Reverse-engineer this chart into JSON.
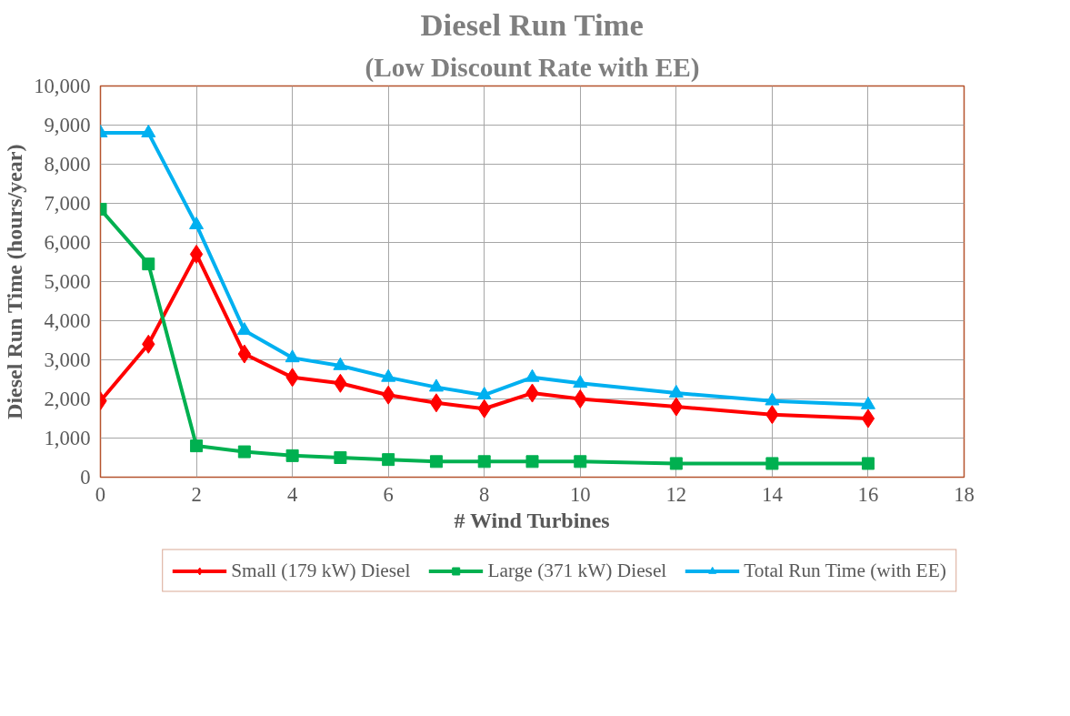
{
  "chart_data": {
    "type": "line",
    "title": "Diesel Run Time",
    "subtitle": "(Low Discount Rate with EE)",
    "xlabel": "# Wind Turbines",
    "ylabel": "Diesel Run Time (hours/year)",
    "x": [
      0,
      1,
      2,
      3,
      4,
      5,
      6,
      7,
      8,
      9,
      10,
      12,
      14,
      16
    ],
    "series": [
      {
        "name": "Small (179 kW) Diesel",
        "color": "#ff0000",
        "marker": "diamond",
        "values": [
          1950,
          3400,
          5700,
          3150,
          2550,
          2400,
          2100,
          1900,
          1750,
          2150,
          2000,
          1800,
          1600,
          1500
        ]
      },
      {
        "name": "Large (371 kW) Diesel",
        "color": "#00b050",
        "marker": "square",
        "values": [
          6850,
          5450,
          800,
          650,
          550,
          500,
          450,
          400,
          400,
          400,
          400,
          350,
          350,
          350
        ]
      },
      {
        "name": "Total Run Time (with EE)",
        "color": "#00b0f0",
        "marker": "triangle",
        "values": [
          8800,
          8800,
          6450,
          3750,
          3050,
          2850,
          2550,
          2300,
          2100,
          2550,
          2400,
          2150,
          1950,
          1850
        ]
      }
    ],
    "xlim": [
      0,
      18
    ],
    "xticks": [
      0,
      2,
      4,
      6,
      8,
      10,
      12,
      14,
      16,
      18
    ],
    "ylim": [
      0,
      10000
    ],
    "yticks": [
      {
        "value": 0,
        "label": "0"
      },
      {
        "value": 1000,
        "label": "1,000"
      },
      {
        "value": 2000,
        "label": "2,000"
      },
      {
        "value": 3000,
        "label": "3,000"
      },
      {
        "value": 4000,
        "label": "4,000"
      },
      {
        "value": 5000,
        "label": "5,000"
      },
      {
        "value": 6000,
        "label": "6,000"
      },
      {
        "value": 7000,
        "label": "7,000"
      },
      {
        "value": 8000,
        "label": "8,000"
      },
      {
        "value": 9000,
        "label": "9,000"
      },
      {
        "value": 10000,
        "label": "10,000"
      }
    ],
    "grid": true,
    "legend": "bottom",
    "line_style": "solid"
  }
}
